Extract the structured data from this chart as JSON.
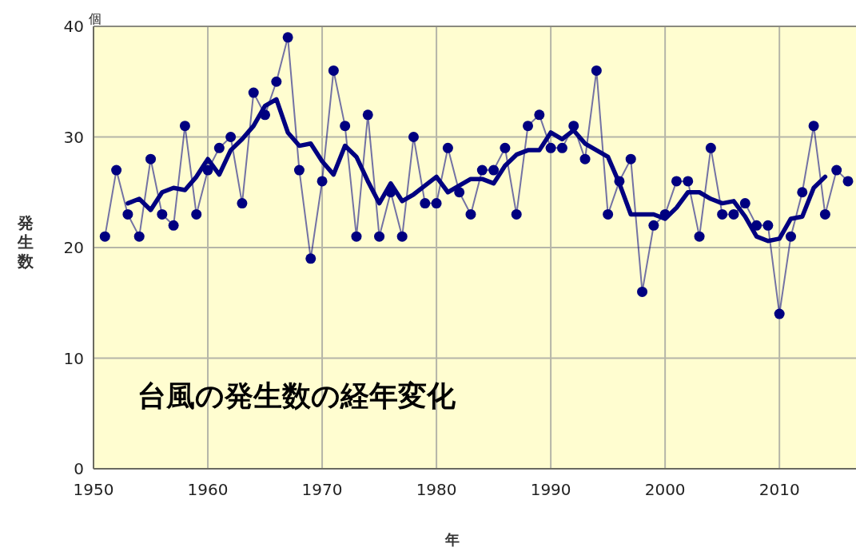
{
  "chart_data": {
    "type": "line",
    "xlabel": "年",
    "ylabel": "発生数",
    "annotations": [
      "台風の発生数の経年変化",
      "個"
    ],
    "xlim": [
      1950,
      2016.7
    ],
    "ylim": [
      0,
      40
    ],
    "xticks": [
      1950,
      1960,
      1970,
      1980,
      1990,
      2000,
      2010
    ],
    "yticks": [
      0,
      10,
      20,
      30,
      40
    ],
    "grid": true,
    "series": [
      {
        "color": "#000080",
        "marker": "circle",
        "x": [
          1951,
          1952,
          1953,
          1954,
          1955,
          1956,
          1957,
          1958,
          1959,
          1960,
          1961,
          1962,
          1963,
          1964,
          1965,
          1966,
          1967,
          1968,
          1969,
          1970,
          1971,
          1972,
          1973,
          1974,
          1975,
          1976,
          1977,
          1978,
          1979,
          1980,
          1981,
          1982,
          1983,
          1984,
          1985,
          1986,
          1987,
          1988,
          1989,
          1990,
          1991,
          1992,
          1993,
          1994,
          1995,
          1996,
          1997,
          1998,
          1999,
          2000,
          2001,
          2002,
          2003,
          2004,
          2005,
          2006,
          2007,
          2008,
          2009,
          2010,
          2011,
          2012,
          2013,
          2014,
          2015,
          2016
        ],
        "values": [
          21,
          27,
          23,
          21,
          28,
          23,
          22,
          31,
          23,
          27,
          29,
          30,
          24,
          34,
          32,
          35,
          39,
          27,
          19,
          26,
          36,
          31,
          21,
          32,
          21,
          25,
          21,
          30,
          24,
          24,
          29,
          25,
          23,
          27,
          27,
          29,
          23,
          31,
          32,
          29,
          29,
          31,
          28,
          36,
          23,
          26,
          28,
          16,
          22,
          23,
          26,
          26,
          21,
          29,
          23,
          23,
          24,
          22,
          22,
          14,
          21,
          25,
          31,
          23,
          27,
          26
        ]
      },
      {
        "color": "#000080",
        "marker": "none",
        "x": [
          1953,
          1954,
          1955,
          1956,
          1957,
          1958,
          1959,
          1960,
          1961,
          1962,
          1963,
          1964,
          1965,
          1966,
          1967,
          1968,
          1969,
          1970,
          1971,
          1972,
          1973,
          1974,
          1975,
          1976,
          1977,
          1978,
          1979,
          1980,
          1981,
          1982,
          1983,
          1984,
          1985,
          1986,
          1987,
          1988,
          1989,
          1990,
          1991,
          1992,
          1993,
          1994,
          1995,
          1996,
          1997,
          1998,
          1999,
          2000,
          2001,
          2002,
          2003,
          2004,
          2005,
          2006,
          2007,
          2008,
          2009,
          2010,
          2011,
          2012,
          2013,
          2014
        ],
        "values": [
          24.0,
          24.4,
          23.4,
          25.0,
          25.4,
          25.2,
          26.4,
          28.0,
          26.6,
          28.8,
          29.8,
          31.0,
          32.8,
          33.4,
          30.4,
          29.2,
          29.4,
          27.8,
          26.6,
          29.2,
          28.2,
          26.0,
          24.0,
          25.8,
          24.2,
          24.8,
          25.6,
          26.4,
          25.0,
          25.6,
          26.2,
          26.2,
          25.8,
          27.4,
          28.4,
          28.8,
          28.8,
          30.4,
          29.8,
          30.6,
          29.4,
          28.8,
          28.2,
          25.8,
          23.0,
          23.0,
          23.0,
          22.6,
          23.6,
          25.0,
          25.0,
          24.4,
          24.0,
          24.2,
          22.8,
          21.0,
          20.6,
          20.8,
          22.6,
          22.8,
          25.4,
          26.4
        ]
      }
    ]
  }
}
